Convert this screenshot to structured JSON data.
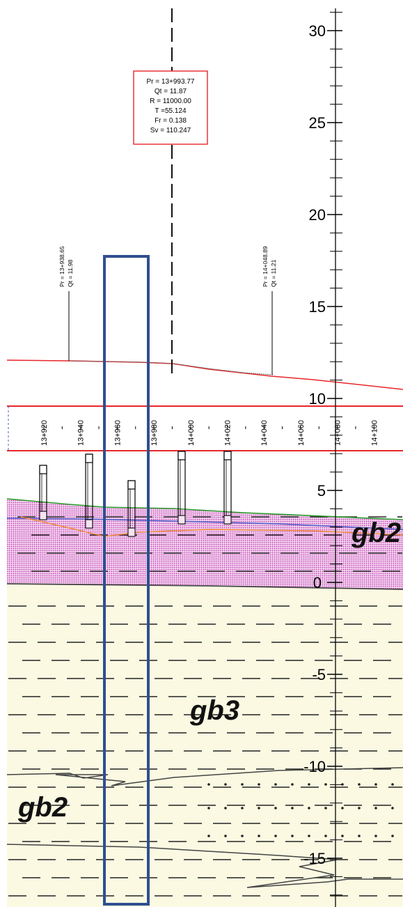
{
  "vertical_axis": {
    "labels": [
      "30",
      "25",
      "20",
      "15",
      "10",
      "5",
      "0",
      "-5",
      "-10",
      "-15"
    ]
  },
  "chainage_labels": [
    "13+920",
    "13+940",
    "13+960",
    "13+980",
    "14+000",
    "14+020",
    "14+040",
    "14+060",
    "14+080",
    "14+100"
  ],
  "vertical_curve": {
    "lines": [
      "Pr = 13+993.77",
      "Qt = 11.87",
      "R = 11000.00",
      "T =55.124",
      "Fr = 0.138",
      "Sv = 110.247"
    ]
  },
  "points": [
    {
      "pr": "Pr = 13+938.65",
      "qt": "Qt = 11.98"
    },
    {
      "pr": "Pr = 14+048.89",
      "qt": "Qt = 11.21"
    }
  ],
  "zones": {
    "upper": "gb2",
    "middle": "gb3",
    "lower": "gb2"
  },
  "colors": {
    "profile_line": "#e8262a",
    "curve_box": "#e8262a",
    "highlight_box": "#2f4f8f",
    "gb2_fill": "#e8b9e4",
    "gb3_fill": "#fbf9e2",
    "ground_line": "#2a9d2a",
    "water_line": "#4a5ec9",
    "orange_line": "#ef8a3a"
  }
}
